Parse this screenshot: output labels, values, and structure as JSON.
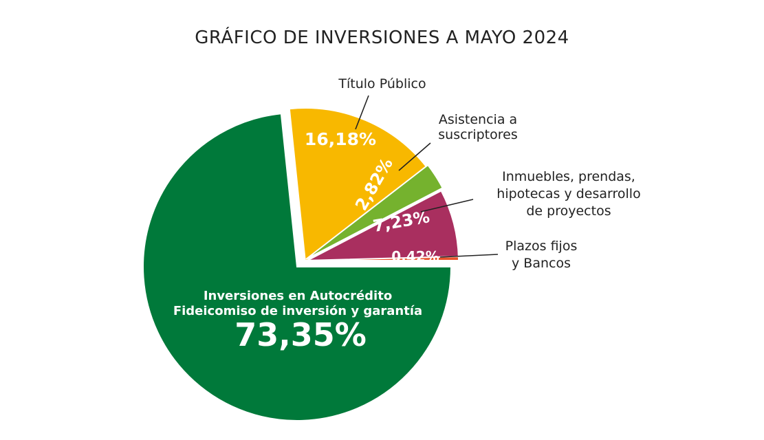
{
  "chart_data": {
    "type": "pie",
    "title": "GRÁFICO DE INVERSIONES A MAYO 2024",
    "slices": [
      {
        "label_lines": [
          "Inversiones en Autocrédito",
          "Fideicomiso de inversión y garantía"
        ],
        "value": 73.35,
        "value_label": "73,35%",
        "color": "#00793A"
      },
      {
        "label_lines": [
          "Título Público"
        ],
        "value": 16.18,
        "value_label": "16,18%",
        "color": "#F8B800"
      },
      {
        "label_lines": [
          "Asistencia a",
          "suscriptores"
        ],
        "value": 2.82,
        "value_label": "2,82%",
        "color": "#75B22E"
      },
      {
        "label_lines": [
          "Inmuebles, prendas,",
          "hipotecas y desarrollo",
          "de proyectos"
        ],
        "value": 7.23,
        "value_label": "7,23%",
        "color": "#A92F5F"
      },
      {
        "label_lines": [
          "Plazos fijos",
          "y Bancos"
        ],
        "value": 0.42,
        "value_label": "0,42%",
        "color": "#E8522A"
      }
    ]
  }
}
